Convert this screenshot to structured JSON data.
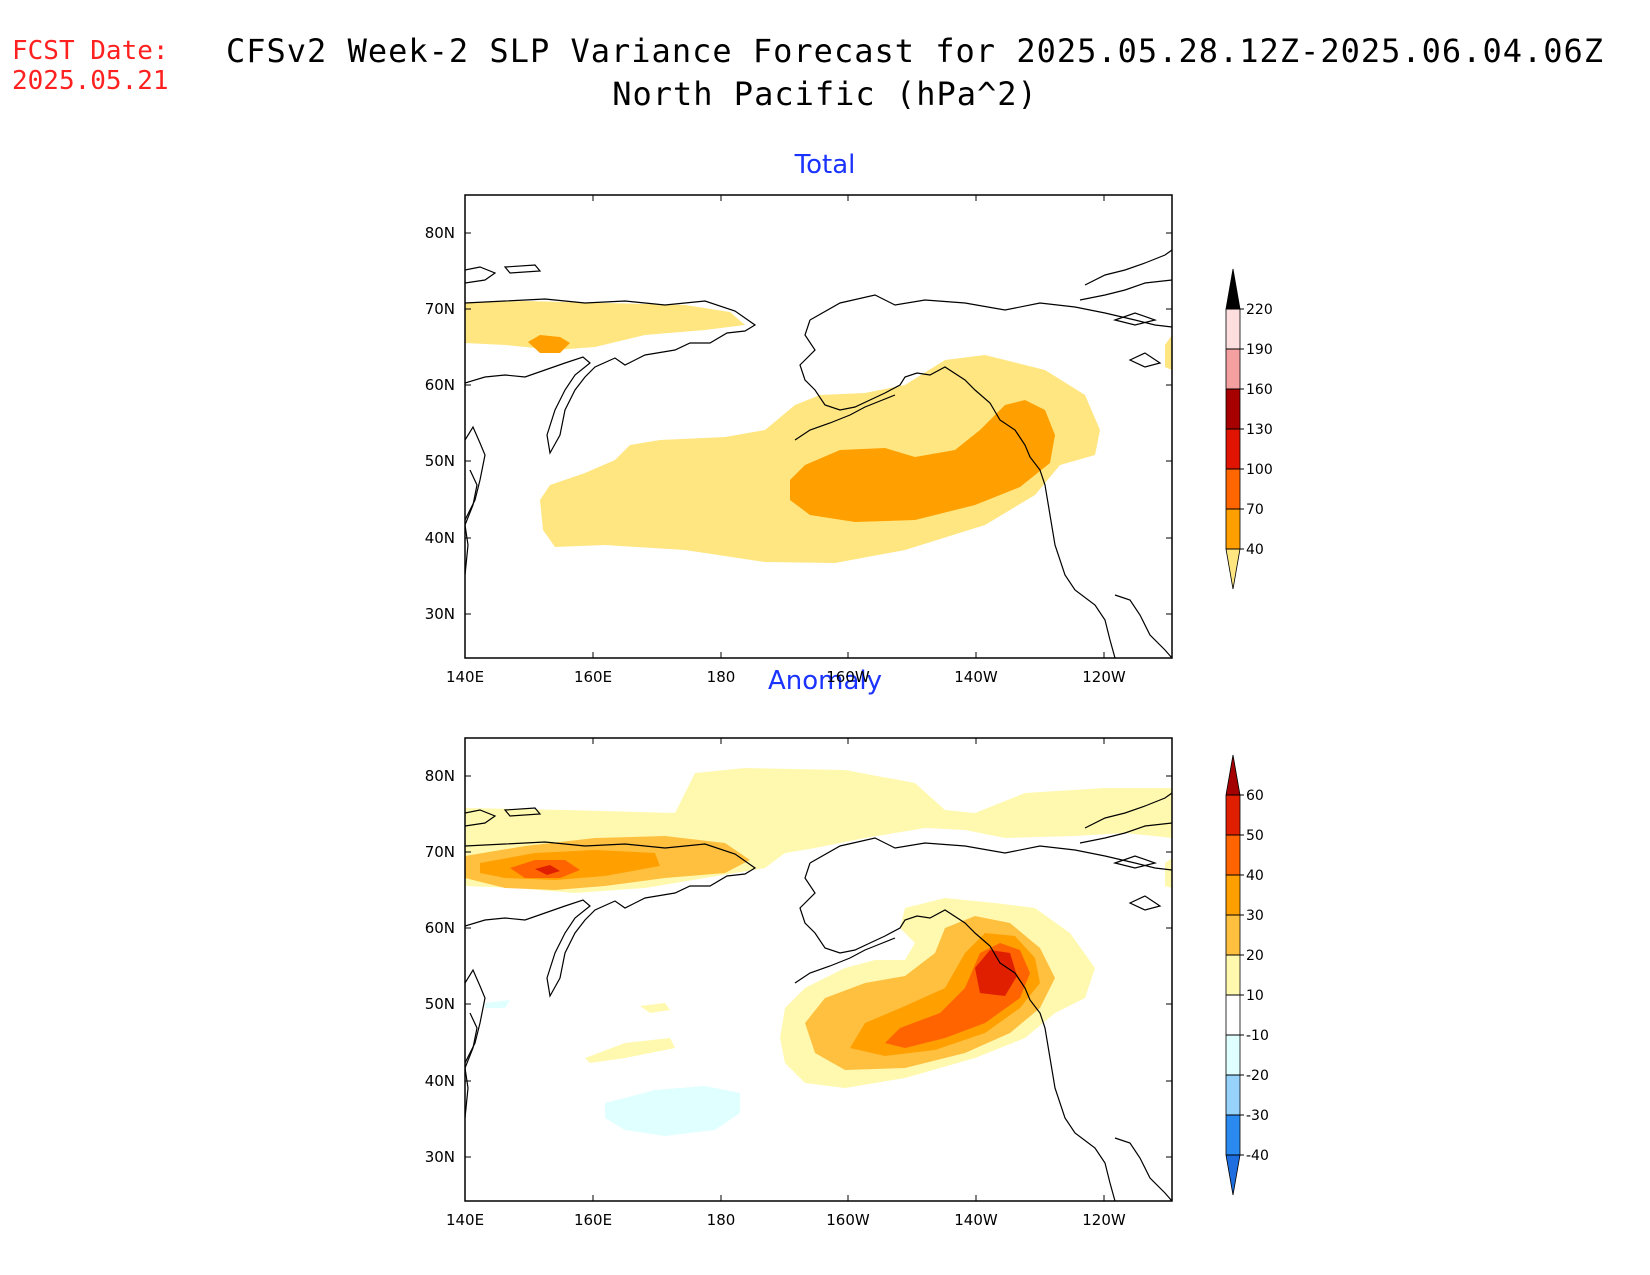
{
  "fcst_date": {
    "label": "FCST Date:",
    "value": "2025.05.21"
  },
  "title": {
    "line1": "CFSv2 Week-2 SLP Variance Forecast for 2025.05.28.12Z-2025.06.04.06Z",
    "line2": "North Pacific (hPa^2)"
  },
  "x_ticks": [
    "140E",
    "160E",
    "180",
    "160W",
    "140W",
    "120W"
  ],
  "y_ticks": [
    "80N",
    "70N",
    "60N",
    "50N",
    "40N",
    "30N"
  ],
  "panels": [
    {
      "title": "Total",
      "colorbar": {
        "labels": [
          "40",
          "70",
          "100",
          "130",
          "160",
          "190",
          "220"
        ],
        "colors": [
          "#ffe680",
          "#ff9f00",
          "#ff6600",
          "#e01400",
          "#a60000",
          "#f4a0a0",
          "#fcdede"
        ]
      }
    },
    {
      "title": "Anomaly",
      "colorbar": {
        "labels": [
          "-40",
          "-30",
          "-20",
          "-10",
          "10",
          "20",
          "30",
          "40",
          "50",
          "60"
        ],
        "colors": [
          "#1e6ee0",
          "#2a8af0",
          "#96d2fa",
          "#e0ffff",
          "#ffffff",
          "#fff9b0",
          "#ffc040",
          "#ffa000",
          "#ff6400",
          "#e01e00",
          "#a50000"
        ]
      }
    }
  ]
}
